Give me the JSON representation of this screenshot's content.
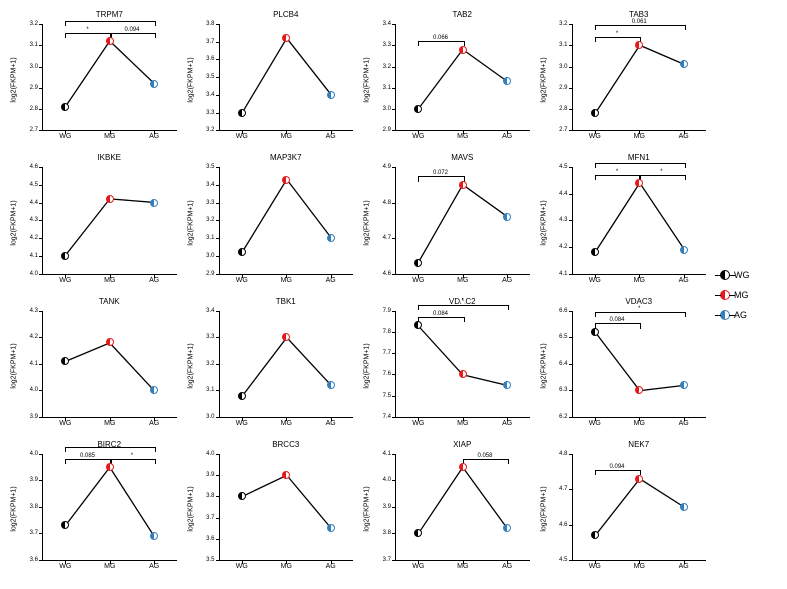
{
  "global": {
    "ylabel": "log2(FKPM+1)",
    "categories": [
      "WG",
      "MG",
      "AG"
    ],
    "colors": {
      "WG": "#000000",
      "MG": "#e41a1c",
      "AG": "#377eb8"
    },
    "line_color": "#000000",
    "line_width": 1.3,
    "marker_size": 8,
    "title_fontsize": 8,
    "tick_fontsize": 6,
    "background": "#ffffff"
  },
  "legend": [
    {
      "label": "WG",
      "class": "wg"
    },
    {
      "label": "MG",
      "class": "mg"
    },
    {
      "label": "AG",
      "class": "ag"
    }
  ],
  "panels": [
    {
      "title": "TRPM7",
      "ymin": 2.7,
      "ymax": 3.2,
      "ytick_step": 0.1,
      "values": [
        2.81,
        3.12,
        2.92
      ],
      "brackets": [
        {
          "from": 0,
          "to": 1,
          "label": "*",
          "level": 0
        },
        {
          "from": 1,
          "to": 2,
          "label": "0.094",
          "level": 0
        },
        {
          "from": 0,
          "to": 2,
          "label": "",
          "level": 1
        }
      ]
    },
    {
      "title": "PLCB4",
      "ymin": 3.2,
      "ymax": 3.8,
      "ytick_step": 0.1,
      "values": [
        3.3,
        3.72,
        3.4
      ],
      "brackets": []
    },
    {
      "title": "TAB2",
      "ymin": 2.9,
      "ymax": 3.4,
      "ytick_step": 0.1,
      "values": [
        3.0,
        3.28,
        3.13
      ],
      "brackets": [
        {
          "from": 0,
          "to": 1,
          "label": "0.066",
          "level": 0
        }
      ]
    },
    {
      "title": "TAB3",
      "ymin": 2.7,
      "ymax": 3.2,
      "ytick_step": 0.1,
      "values": [
        2.78,
        3.1,
        3.01
      ],
      "brackets": [
        {
          "from": 0,
          "to": 1,
          "label": "*",
          "level": 0
        },
        {
          "from": 0,
          "to": 2,
          "label": "0.061",
          "level": 1
        }
      ]
    },
    {
      "title": "IKBKE",
      "ymin": 4.0,
      "ymax": 4.6,
      "ytick_step": 0.1,
      "values": [
        4.1,
        4.42,
        4.4
      ],
      "brackets": []
    },
    {
      "title": "MAP3K7",
      "ymin": 2.9,
      "ymax": 3.5,
      "ytick_step": 0.1,
      "values": [
        3.02,
        3.43,
        3.1
      ],
      "brackets": []
    },
    {
      "title": "MAVS",
      "ymin": 4.6,
      "ymax": 4.9,
      "ytick_step": 0.1,
      "values": [
        4.63,
        4.85,
        4.76
      ],
      "brackets": [
        {
          "from": 0,
          "to": 1,
          "label": "0.072",
          "level": 0
        }
      ]
    },
    {
      "title": "MFN1",
      "ymin": 4.1,
      "ymax": 4.5,
      "ytick_step": 0.1,
      "values": [
        4.18,
        4.44,
        4.19
      ],
      "brackets": [
        {
          "from": 0,
          "to": 1,
          "label": "*",
          "level": 0
        },
        {
          "from": 1,
          "to": 2,
          "label": "*",
          "level": 0
        },
        {
          "from": 0,
          "to": 2,
          "label": "",
          "level": 1
        }
      ]
    },
    {
      "title": "TANK",
      "ymin": 3.9,
      "ymax": 4.3,
      "ytick_step": 0.1,
      "values": [
        4.11,
        4.18,
        4.0
      ],
      "brackets": []
    },
    {
      "title": "TBK1",
      "ymin": 3.0,
      "ymax": 3.4,
      "ytick_step": 0.1,
      "values": [
        3.08,
        3.3,
        3.12
      ],
      "brackets": []
    },
    {
      "title": "VDAC2",
      "ymin": 7.4,
      "ymax": 7.9,
      "ytick_step": 0.1,
      "values": [
        7.83,
        7.6,
        7.55
      ],
      "brackets": [
        {
          "from": 0,
          "to": 1,
          "label": "0.084",
          "level": 0
        },
        {
          "from": 0,
          "to": 2,
          "label": "*",
          "level": 1
        }
      ]
    },
    {
      "title": "VDAC3",
      "ymin": 6.2,
      "ymax": 6.6,
      "ytick_step": 0.1,
      "values": [
        6.52,
        6.3,
        6.32
      ],
      "brackets": [
        {
          "from": 0,
          "to": 1,
          "label": "0.084",
          "level": 0
        },
        {
          "from": 0,
          "to": 2,
          "label": "*",
          "level": 1
        }
      ]
    },
    {
      "title": "BIRC2",
      "ymin": 3.6,
      "ymax": 4.0,
      "ytick_step": 0.1,
      "values": [
        3.73,
        3.95,
        3.69
      ],
      "brackets": [
        {
          "from": 0,
          "to": 1,
          "label": "0.085",
          "level": 0
        },
        {
          "from": 1,
          "to": 2,
          "label": "*",
          "level": 0
        },
        {
          "from": 0,
          "to": 2,
          "label": "",
          "level": 1
        }
      ]
    },
    {
      "title": "BRCC3",
      "ymin": 3.5,
      "ymax": 4.0,
      "ytick_step": 0.1,
      "values": [
        3.8,
        3.9,
        3.65
      ],
      "brackets": []
    },
    {
      "title": "XIAP",
      "ymin": 3.7,
      "ymax": 4.1,
      "ytick_step": 0.1,
      "values": [
        3.8,
        4.05,
        3.82
      ],
      "brackets": [
        {
          "from": 1,
          "to": 2,
          "label": "0.058",
          "level": 0
        }
      ]
    },
    {
      "title": "NEK7",
      "ymin": 4.5,
      "ymax": 4.8,
      "ytick_step": 0.1,
      "values": [
        4.57,
        4.73,
        4.65
      ],
      "brackets": [
        {
          "from": 0,
          "to": 1,
          "label": "0.094",
          "level": 0
        }
      ]
    }
  ]
}
